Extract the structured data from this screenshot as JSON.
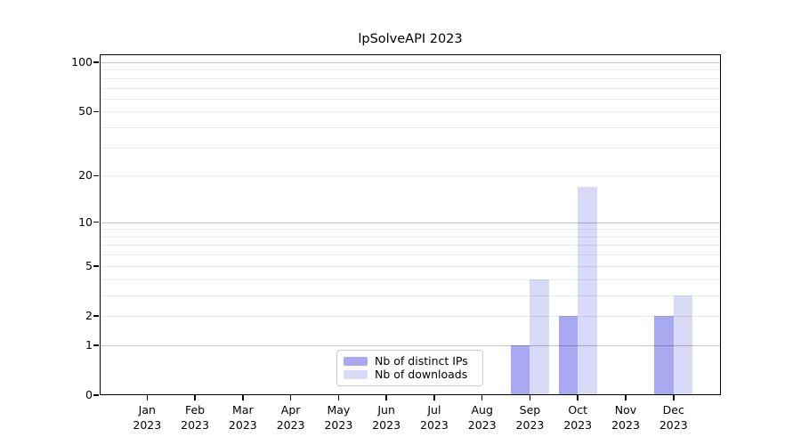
{
  "chart_data": {
    "type": "bar",
    "title": "lpSolveAPI 2023",
    "categories": [
      "Jan",
      "Feb",
      "Mar",
      "Apr",
      "May",
      "Jun",
      "Jul",
      "Aug",
      "Sep",
      "Oct",
      "Nov",
      "Dec"
    ],
    "category_year": "2023",
    "series": [
      {
        "name": "Nb of distinct IPs",
        "color": "#a9a9f2",
        "values": [
          0,
          0,
          0,
          0,
          0,
          0,
          0,
          0,
          1,
          2,
          0,
          2
        ]
      },
      {
        "name": "Nb of downloads",
        "color": "#d9d9f8",
        "values": [
          0,
          0,
          0,
          0,
          0,
          0,
          0,
          0,
          4,
          17,
          0,
          3
        ]
      }
    ],
    "xlabel": "",
    "ylabel": "",
    "y_axis": {
      "scale": "log1p",
      "ticks": [
        0,
        1,
        2,
        5,
        10,
        20,
        50,
        100
      ],
      "major_gridlines": [
        1,
        10,
        100
      ],
      "minor_gridlines": [
        2,
        3,
        4,
        5,
        6,
        7,
        8,
        9,
        20,
        30,
        40,
        50,
        60,
        70,
        80,
        90
      ],
      "ylim": [
        0,
        112
      ]
    },
    "grid": true,
    "legend_position": "lower center"
  },
  "colors": {
    "background": "#ffffff",
    "spine": "#000000",
    "text": "#000000",
    "major_grid": "rgba(0,0,0,0.23)",
    "minor_grid": "rgba(0,0,0,0.075)",
    "legend_border": "#cccccc"
  }
}
